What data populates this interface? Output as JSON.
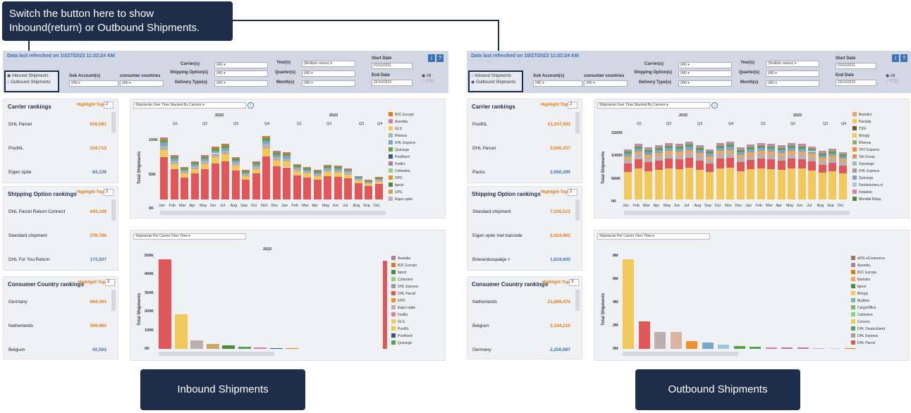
{
  "callout": {
    "text": "Switch the button here to show Inbound(return) or Outbound Shipments."
  },
  "labels": {
    "inbound": "Inbound Shipments",
    "outbound": "Outbound Shipments"
  },
  "common": {
    "refresh": "Data last refreshed on 10/27/2023 11:02:24 AM",
    "radio_inbound": "Inbound Shipments",
    "radio_outbound": "Outbound Shipments",
    "carriers_label": "Carrier(s)",
    "shipping_label": "Shipping Option(s)",
    "delivery_label": "Delivery Type(s)",
    "subaccount_label": "Sub Account(s)",
    "country_label": "consumer countries",
    "year_label": "Year(s)",
    "quarter_label": "Quarter(s)",
    "month_label": "Month(s)",
    "all": "(All)",
    "multi": "(Multiple values)",
    "start_label": "Start Date",
    "start_val": "01/01/2021",
    "end_label": "End Date",
    "end_val": "26/10/2023",
    "opt_all": "All",
    "opt_ytd": "YTD",
    "info": "i",
    "help": "?",
    "carrier_rankings": "Carrier rankings",
    "shipping_rankings": "Shipping Option  rankings",
    "country_rankings": "Consumer Country rankings",
    "highlight": "Highlight Top",
    "chart1_title": "Shipments Over Time Stacked By Carriers",
    "chart2_title": "Shipments Per Carrier Over Time",
    "ylabel": "Total Shipments",
    "months": [
      "Jan",
      "Feb",
      "Mar",
      "Apr",
      "May",
      "Jun",
      "Jul",
      "Aug",
      "Sep",
      "Oct",
      "Nov",
      "Dec",
      "Jan",
      "Feb",
      "Mar",
      "Apr",
      "May",
      "Jun",
      "Jul",
      "Aug",
      "Sep",
      "Oct"
    ],
    "quarters": [
      "Q1",
      "Q2",
      "Q3",
      "Q4",
      "Q1",
      "Q2",
      "Q3",
      "Q4"
    ],
    "y2022": "2022",
    "y2023": "2023"
  },
  "inbound": {
    "highlight": [
      "2",
      "2",
      "3"
    ],
    "carriers": [
      [
        "DHL Parcel",
        "916,581"
      ],
      [
        "PostNL",
        "319,713"
      ],
      [
        "Eigen optie",
        "83,126"
      ]
    ],
    "shipping": [
      [
        "DHL Parcel Return Connect",
        "643,109"
      ],
      [
        "Standard shipment",
        "278,786"
      ],
      [
        "DHL For You Return",
        "173,507"
      ]
    ],
    "countries": [
      [
        "Germany",
        "664,163"
      ],
      [
        "Netherlands",
        "599,460"
      ],
      [
        "Belgium",
        "92,503"
      ]
    ],
    "chart1_ticks": [
      "100K",
      "50K",
      "0K"
    ],
    "chart2_ticks": [
      "500K",
      "400K",
      "300K",
      "200K",
      "100K",
      "0K"
    ],
    "legend1": [
      [
        "B2C Europe",
        "#e07b12"
      ],
      [
        "Asendia",
        "#d67fa8"
      ],
      [
        "GLS",
        "#f2c85b"
      ],
      [
        "Rhenus",
        "#9bbfb3"
      ],
      [
        "DHL Express",
        "#79a7c7"
      ],
      [
        "Quicargo",
        "#59a14f"
      ],
      [
        "PostNord",
        "#2a5a8a"
      ],
      [
        "FedEx",
        "#b07aa1"
      ],
      [
        "Colissimo",
        "#8cd17d"
      ],
      [
        "DPD",
        "#f28e2b"
      ],
      [
        "bpost",
        "#4e8a3e"
      ],
      [
        "UPS",
        "#c8a860"
      ],
      [
        "Eigen optie",
        "#bab0ac"
      ]
    ],
    "legend2": [
      [
        "Asendia",
        "#b07aa1"
      ],
      [
        "B2C Europe",
        "#e07b12"
      ],
      [
        "bpost",
        "#4e8a3e"
      ],
      [
        "Colissimo",
        "#8cd17d"
      ],
      [
        "DHL Express",
        "#9d9d9d"
      ],
      [
        "DHL Parcel",
        "#e15759"
      ],
      [
        "DPD",
        "#f28e2b"
      ],
      [
        "Eigen optie",
        "#bab0ac"
      ],
      [
        "FedEx",
        "#d67fa8"
      ],
      [
        "GLS",
        "#f2c85b"
      ],
      [
        "PostNL",
        "#edc948"
      ],
      [
        "PostNord",
        "#2a5a8a"
      ],
      [
        "Quicargo",
        "#59a14f"
      ]
    ],
    "chart_data": {
      "type": "bar",
      "title": "Shipments Over Time Stacked By Carriers",
      "ylabel": "Total Shipments",
      "values": [
        105,
        75,
        55,
        65,
        75,
        90,
        95,
        72,
        50,
        65,
        108,
        82,
        80,
        60,
        55,
        50,
        58,
        57,
        53,
        40,
        33,
        38
      ]
    }
  },
  "outbound": {
    "highlight": [
      "2",
      "2",
      "3"
    ],
    "carriers": [
      [
        "PostNL",
        "13,157,502"
      ],
      [
        "DHL Parcel",
        "5,045,157"
      ],
      [
        "Packs",
        "2,850,395"
      ]
    ],
    "shipping": [
      [
        "Standard shipment",
        "7,155,512"
      ],
      [
        "Eigen optie met barcode",
        "2,624,962"
      ],
      [
        "Brievenbuspakje +",
        "1,624,605"
      ]
    ],
    "countries": [
      [
        "Netherlands",
        "21,669,475"
      ],
      [
        "Belgium",
        "3,104,210"
      ],
      [
        "Germany",
        "2,256,987"
      ]
    ],
    "chart1_ticks": [
      "1500K",
      "1000K",
      "500K",
      "0K"
    ],
    "chart2_ticks": [
      "8M",
      "6M",
      "4M",
      "2M",
      "0M"
    ],
    "legend1": [
      [
        "Bartolini",
        "#f1a45c"
      ],
      [
        "Packaly",
        "#f2c85b"
      ],
      [
        "TSN",
        "#6b5a2a"
      ],
      [
        "Bringly",
        "#f2c85b"
      ],
      [
        "Rhenus",
        "#8cb06a"
      ],
      [
        "TNT Express",
        "#f28e2b"
      ],
      [
        "Toll Group",
        "#c99b62"
      ],
      [
        "Dynalogic",
        "#9bbfb3"
      ],
      [
        "DHL Express",
        "#9d9d9d"
      ],
      [
        "Quicargo",
        "#79a7c7"
      ],
      [
        "Fietskoeriers.nl",
        "#a6c8d8"
      ],
      [
        "Instabox",
        "#d67fa8"
      ],
      [
        "Mondial Relay",
        "#4e8a3e"
      ]
    ],
    "legend2": [
      [
        "APG eCommerce",
        "#9c755f"
      ],
      [
        "Asendia",
        "#b07aa1"
      ],
      [
        "B2C Europe",
        "#e07b12"
      ],
      [
        "Bartolini",
        "#f1a45c"
      ],
      [
        "bpost",
        "#4e8a3e"
      ],
      [
        "Bringly",
        "#f2c85b"
      ],
      [
        "Budbee",
        "#76b7b2"
      ],
      [
        "CargoOffice",
        "#8cb06a"
      ],
      [
        "Colissimo",
        "#8cd17d"
      ],
      [
        "Correos",
        "#f2c85b"
      ],
      [
        "DHL Deutschland",
        "#59a14f"
      ],
      [
        "DHL Express",
        "#9d9d9d"
      ],
      [
        "DHL Parcel",
        "#e15759"
      ]
    ]
  }
}
